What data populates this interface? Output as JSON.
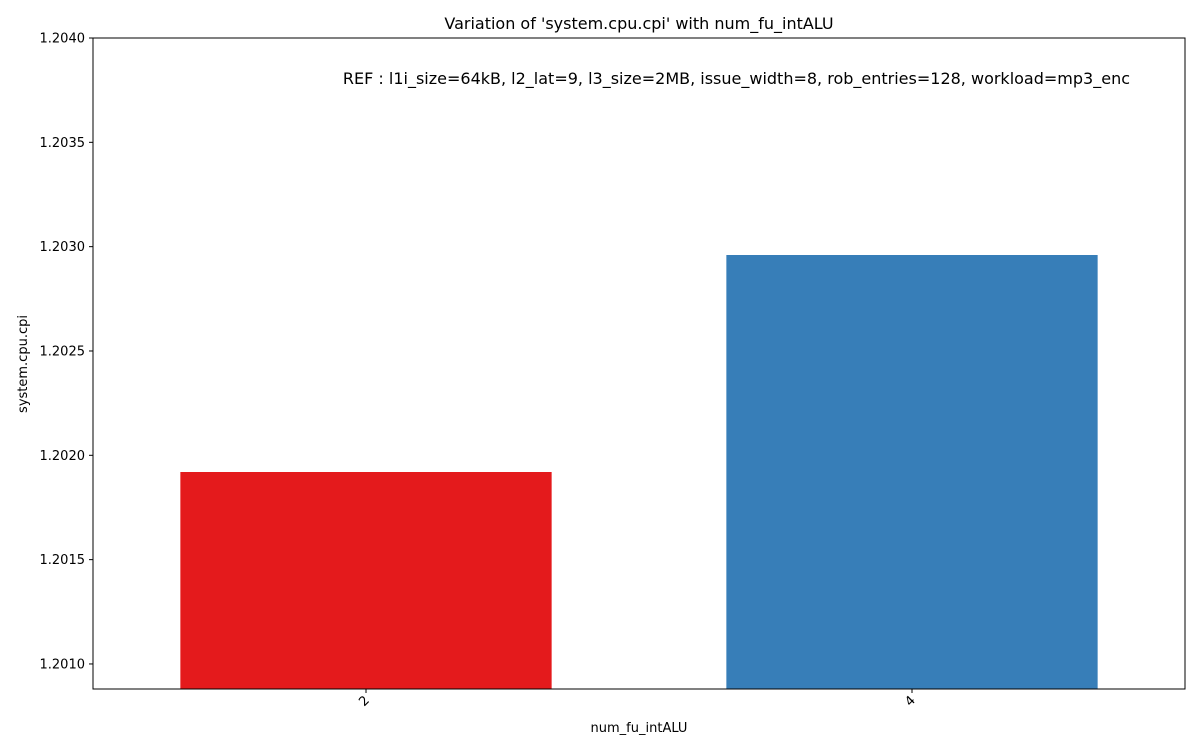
{
  "chart_data": {
    "type": "bar",
    "title": "Variation of 'system.cpu.cpi' with num_fu_intALU",
    "xlabel": "num_fu_intALU",
    "ylabel": "system.cpu.cpi",
    "annotation": "REF : l1i_size=64kB, l2_lat=9, l3_size=2MB, issue_width=8, rob_entries=128, workload=mp3_enc",
    "categories": [
      "2",
      "4"
    ],
    "values": [
      1.20192,
      1.20296
    ],
    "colors": [
      "#e41a1c",
      "#377eb8"
    ],
    "ylim": [
      1.20088,
      1.204
    ],
    "yticks": [
      "1.2010",
      "1.2015",
      "1.2020",
      "1.2025",
      "1.2030",
      "1.2035",
      "1.2040"
    ],
    "grid": false,
    "legend": "none"
  }
}
